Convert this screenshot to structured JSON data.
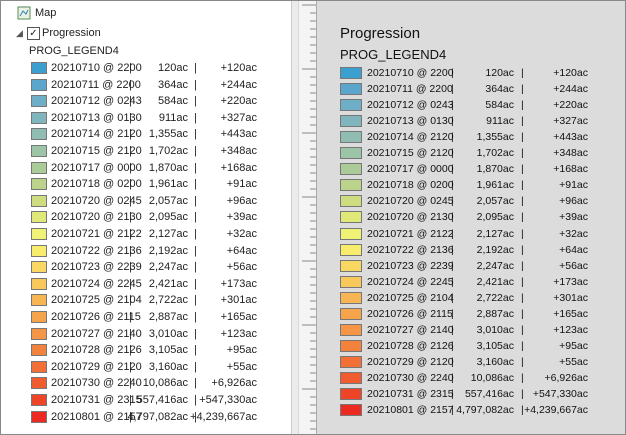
{
  "toc": {
    "map_label": "Map"
  },
  "legend": {
    "title": "Progression",
    "heading": "PROG_LEGEND4",
    "separator": "|",
    "items": [
      {
        "date": "20210710 @ 2200",
        "acres": "120ac",
        "change": "+120ac",
        "color": "#3b9fd0"
      },
      {
        "date": "20210711 @ 2200",
        "acres": "364ac",
        "change": "+244ac",
        "color": "#5aa6cc"
      },
      {
        "date": "20210712 @ 0243",
        "acres": "584ac",
        "change": "+220ac",
        "color": "#6eaec6"
      },
      {
        "date": "20210713 @ 0130",
        "acres": "911ac",
        "change": "+327ac",
        "color": "#80b5be"
      },
      {
        "date": "20210714 @ 2120",
        "acres": "1,355ac",
        "change": "+443ac",
        "color": "#8fbdb2"
      },
      {
        "date": "20210715 @ 2120",
        "acres": "1,702ac",
        "change": "+348ac",
        "color": "#9cc4a6"
      },
      {
        "date": "20210717 @ 0000",
        "acres": "1,870ac",
        "change": "+168ac",
        "color": "#abcb98"
      },
      {
        "date": "20210718 @ 0200",
        "acres": "1,961ac",
        "change": "+91ac",
        "color": "#bcd38b"
      },
      {
        "date": "20210720 @ 0245",
        "acres": "2,057ac",
        "change": "+96ac",
        "color": "#cfdd80"
      },
      {
        "date": "20210720 @ 2130",
        "acres": "2,095ac",
        "change": "+39ac",
        "color": "#e0e878"
      },
      {
        "date": "20210721 @ 2122",
        "acres": "2,127ac",
        "change": "+32ac",
        "color": "#f0f276"
      },
      {
        "date": "20210722 @ 2136",
        "acres": "2,192ac",
        "change": "+64ac",
        "color": "#f7ec6c"
      },
      {
        "date": "20210723 @ 2239",
        "acres": "2,247ac",
        "change": "+56ac",
        "color": "#f8d862"
      },
      {
        "date": "20210724 @ 2245",
        "acres": "2,421ac",
        "change": "+173ac",
        "color": "#f8c85a"
      },
      {
        "date": "20210725 @ 2104",
        "acres": "2,722ac",
        "change": "+301ac",
        "color": "#f7b553"
      },
      {
        "date": "20210726 @ 2115",
        "acres": "2,887ac",
        "change": "+165ac",
        "color": "#f6a44c"
      },
      {
        "date": "20210727 @ 2140",
        "acres": "3,010ac",
        "change": "+123ac",
        "color": "#f59545"
      },
      {
        "date": "20210728 @ 2126",
        "acres": "3,105ac",
        "change": "+95ac",
        "color": "#f3823d"
      },
      {
        "date": "20210729 @ 2120",
        "acres": "3,160ac",
        "change": "+55ac",
        "color": "#f27036"
      },
      {
        "date": "20210730 @ 2240",
        "acres": "10,086ac",
        "change": "+6,926ac",
        "color": "#f05c2f"
      },
      {
        "date": "20210731 @ 2315",
        "acres": "557,416ac",
        "change": "+547,330ac",
        "color": "#ee4528"
      },
      {
        "date": "20210801 @ 2157",
        "acres": "4,797,082ac",
        "change": "+4,239,667ac",
        "color": "#ec2a22"
      }
    ]
  }
}
